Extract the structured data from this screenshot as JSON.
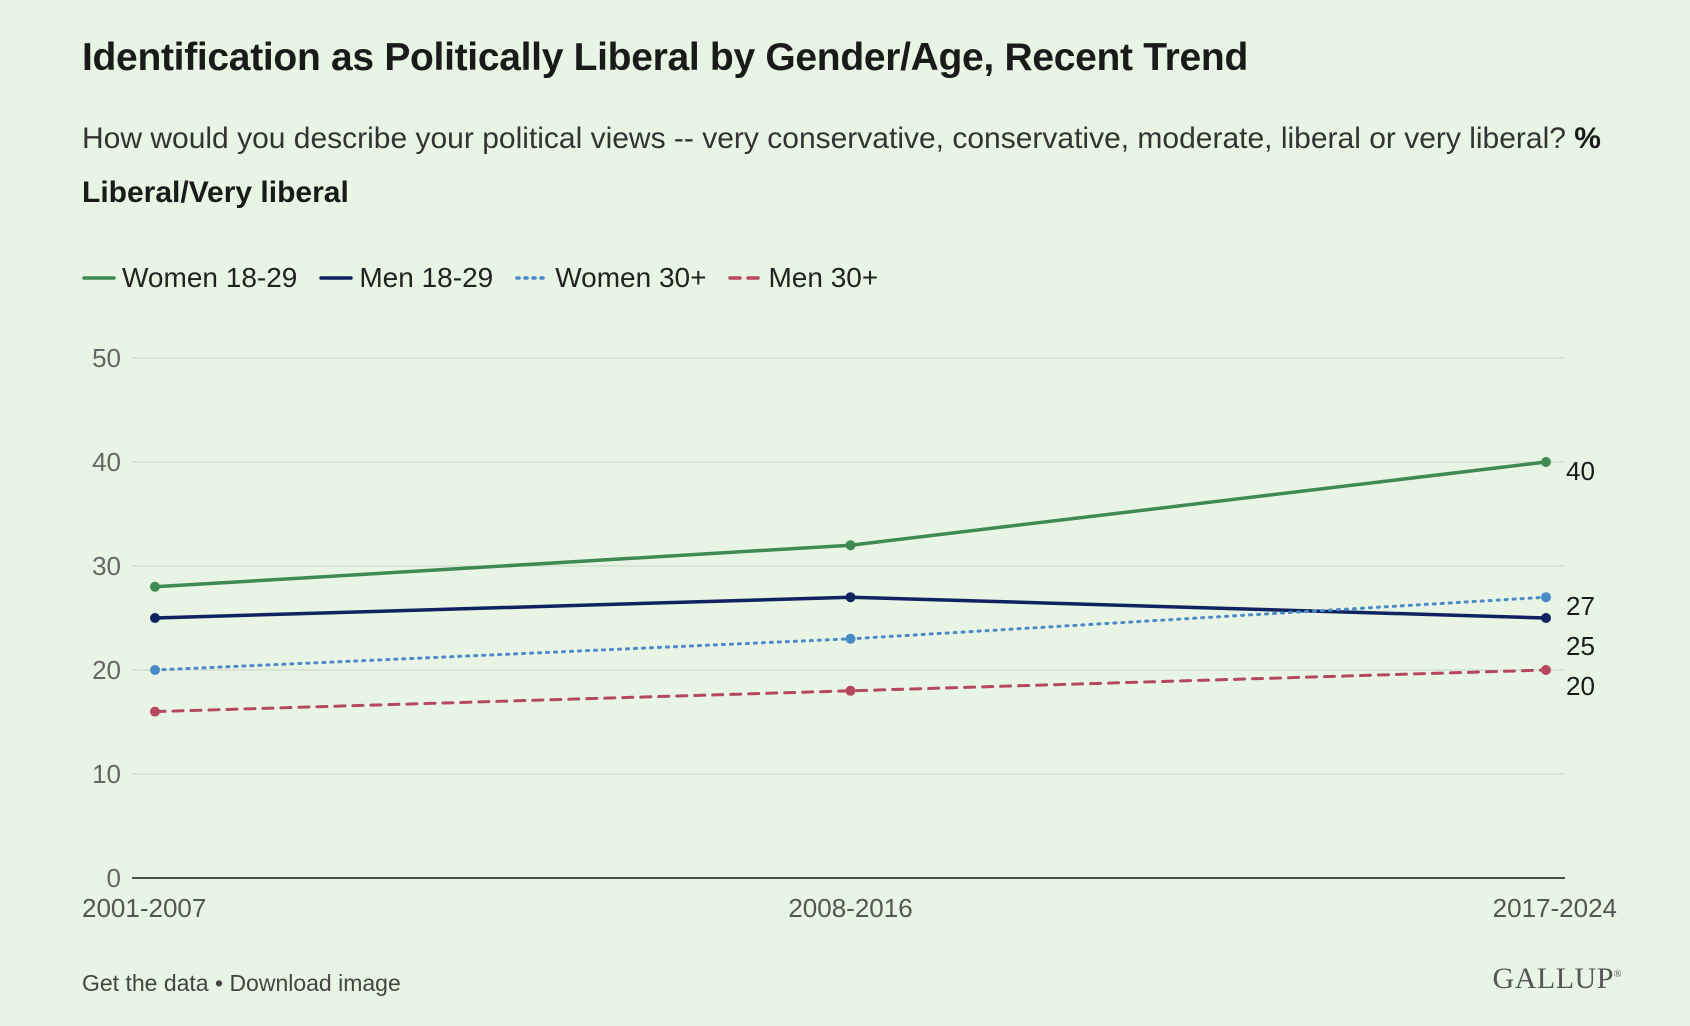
{
  "header": {
    "title": "Identification as Politically Liberal by Gender/Age, Recent Trend",
    "subtitle_text": "How would you describe your political views -- very conservative, conservative, moderate, liberal or very liberal?",
    "subtitle_bold": "% Liberal/Very liberal"
  },
  "footer": {
    "get_data": "Get the data",
    "separator": "•",
    "download": "Download image",
    "brand": "GALLUP"
  },
  "chart_data": {
    "type": "line",
    "title": "Identification as Politically Liberal by Gender/Age, Recent Trend",
    "xlabel": "",
    "ylabel": "",
    "x": [
      "2001-2007",
      "2008-2016",
      "2017-2024"
    ],
    "ylim": [
      0,
      50
    ],
    "yticks": [
      0,
      10,
      20,
      30,
      40,
      50
    ],
    "grid": true,
    "legend": "top-left",
    "series": [
      {
        "name": "Women 18-29",
        "values": [
          28,
          32,
          40
        ],
        "color": "#3f8a52",
        "dash": "solid",
        "end_label": "40"
      },
      {
        "name": "Men 18-29",
        "values": [
          25,
          27,
          25
        ],
        "color": "#0f2360",
        "dash": "solid",
        "end_label": "25"
      },
      {
        "name": "Women 30+",
        "values": [
          20,
          23,
          27
        ],
        "color": "#4a8ac9",
        "dash": "dotted",
        "end_label": "27"
      },
      {
        "name": "Men 30+",
        "values": [
          16,
          18,
          20
        ],
        "color": "#b5485d",
        "dash": "dashed",
        "end_label": "20"
      }
    ]
  }
}
